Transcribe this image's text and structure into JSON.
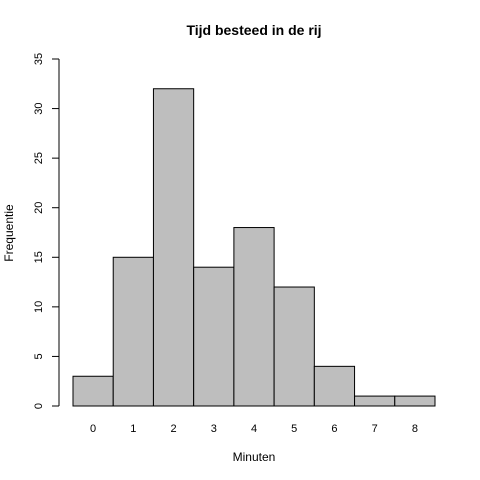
{
  "chart_data": {
    "type": "bar",
    "title": "Tijd besteed in de rij",
    "xlabel": "Minuten",
    "ylabel": "Frequentie",
    "categories": [
      "0",
      "1",
      "2",
      "3",
      "4",
      "5",
      "6",
      "7",
      "8"
    ],
    "values": [
      3,
      15,
      32,
      14,
      18,
      12,
      4,
      1,
      1
    ],
    "ylim": [
      0,
      35
    ],
    "yticks": [
      0,
      5,
      10,
      15,
      20,
      25,
      30,
      35
    ],
    "grid": false,
    "colors": {
      "bar_fill": "#bebebe",
      "bar_stroke": "#000000"
    }
  }
}
